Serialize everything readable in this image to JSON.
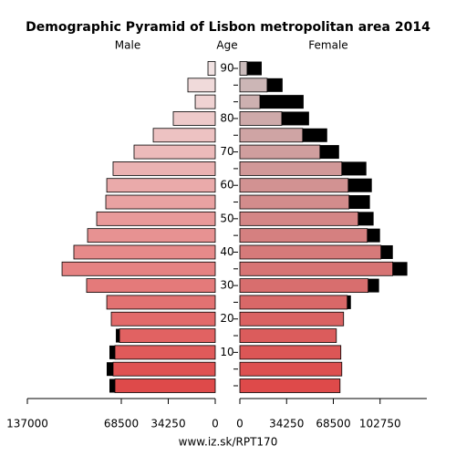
{
  "chart_data": {
    "type": "pyramid",
    "title": "Demographic Pyramid of Lisbon metropolitan area 2014",
    "center_label": "Age",
    "footer": "www.iz.sk/RPT170",
    "categories": [
      null,
      null,
      "10",
      null,
      "20",
      null,
      "30",
      null,
      "40",
      null,
      "50",
      null,
      "60",
      null,
      "70",
      null,
      "80",
      null,
      null,
      "90"
    ],
    "xlim": [
      0,
      137000
    ],
    "xticks_left": [
      137000,
      68500,
      34250,
      0
    ],
    "xticks_right": [
      0,
      34250,
      68500,
      102750
    ],
    "series": [
      {
        "name": "Male",
        "side": "left",
        "values": [
          73150,
          74500,
          73150,
          69800,
          75800,
          79100,
          93800,
          111700,
          103100,
          93100,
          86450,
          79800,
          79100,
          74500,
          59200,
          45200,
          30600,
          14600,
          19950,
          5300
        ],
        "outer_values": [
          4000,
          4650,
          4000,
          2660,
          0,
          0,
          0,
          0,
          0,
          0,
          0,
          0,
          0,
          0,
          0,
          0,
          0,
          0,
          0,
          0
        ],
        "colors": [
          "#de4a4a",
          "#df5252",
          "#e05a5a",
          "#e16262",
          "#e26a6a",
          "#e37272",
          "#e47a7a",
          "#e58282",
          "#e68a8a",
          "#e79292",
          "#e89a9a",
          "#e9a2a2",
          "#eaaaaa",
          "#ebb2b2",
          "#ecbaba",
          "#edc2c2",
          "#eecaca",
          "#efd2d2",
          "#f0dada",
          "#f1e2e2"
        ],
        "outer_color": "#000000"
      },
      {
        "name": "Female",
        "side": "right",
        "values": [
          73400,
          74700,
          74000,
          70700,
          76000,
          78700,
          94000,
          112000,
          103400,
          93400,
          86700,
          80000,
          79400,
          74700,
          58700,
          46000,
          30700,
          14700,
          20000,
          5300
        ],
        "outer_values": [
          0,
          0,
          0,
          0,
          0,
          2670,
          8000,
          10700,
          8700,
          9300,
          11300,
          15300,
          17300,
          18000,
          14000,
          18000,
          20000,
          32000,
          11300,
          10700
        ],
        "colors": [
          "#de4a4a",
          "#dd5050",
          "#dc5656",
          "#db5c5c",
          "#da6262",
          "#d96868",
          "#d86e6e",
          "#d77474",
          "#d67a7a",
          "#d58080",
          "#d48686",
          "#d38c8c",
          "#d29292",
          "#d19898",
          "#d09e9e",
          "#cfa4a4",
          "#ceaaaa",
          "#cdb0b0",
          "#ccb6b6",
          "#cbbcbc"
        ],
        "outer_color": "#000000"
      }
    ]
  }
}
